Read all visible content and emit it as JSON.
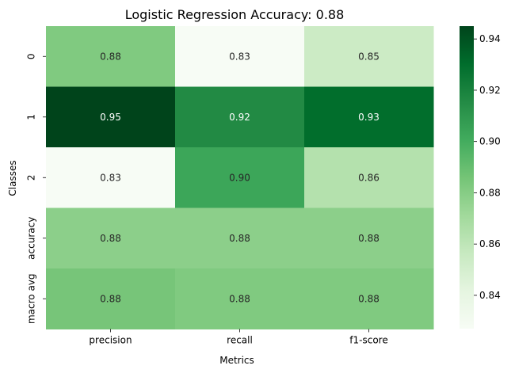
{
  "chart_data": {
    "type": "heatmap",
    "title": "Logistic Regression Accuracy: 0.88",
    "xlabel": "Metrics",
    "ylabel": "Classes",
    "x_categories": [
      "precision",
      "recall",
      "f1-score"
    ],
    "y_categories": [
      "0",
      "1",
      "2",
      "accuracy",
      "macro avg"
    ],
    "values": [
      [
        0.882,
        0.827,
        0.854
      ],
      [
        0.945,
        0.916,
        0.93
      ],
      [
        0.827,
        0.903,
        0.864
      ],
      [
        0.878,
        0.878,
        0.878
      ],
      [
        0.885,
        0.882,
        0.882
      ]
    ],
    "labels": [
      [
        "0.88",
        "0.83",
        "0.85"
      ],
      [
        "0.95",
        "0.92",
        "0.93"
      ],
      [
        "0.83",
        "0.90",
        "0.86"
      ],
      [
        "0.88",
        "0.88",
        "0.88"
      ],
      [
        "0.88",
        "0.88",
        "0.88"
      ]
    ],
    "colormap": "Greens",
    "color_range": [
      0.827,
      0.945
    ],
    "colorbar_ticks": [
      "0.84",
      "0.86",
      "0.88",
      "0.90",
      "0.92",
      "0.94"
    ],
    "colorbar_tick_values": [
      0.84,
      0.86,
      0.88,
      0.9,
      0.92,
      0.94
    ],
    "colors": {
      "low": "#f7fcf5",
      "high": "#00441b"
    }
  }
}
